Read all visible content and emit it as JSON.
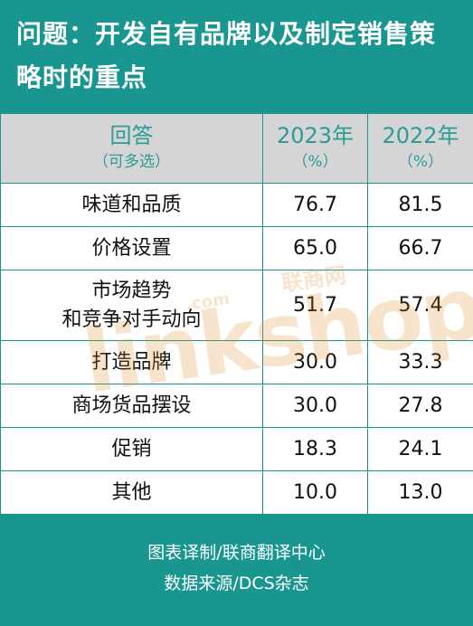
{
  "title": "问题：开发自有品牌以及制定销售策略时的重点",
  "table": {
    "headers": {
      "answer_main": "回答",
      "answer_sub": "（可多选）",
      "year1_main": "2023年",
      "year1_sub": "（%）",
      "year2_main": "2022年",
      "year2_sub": "（%）"
    },
    "rows": [
      {
        "label": "味道和品质",
        "label2": "",
        "v2023": "76.7",
        "v2022": "81.5"
      },
      {
        "label": "价格设置",
        "label2": "",
        "v2023": "65.0",
        "v2022": "66.7"
      },
      {
        "label": "市场趋势",
        "label2": "和竞争对手动向",
        "v2023": "51.7",
        "v2022": "57.4"
      },
      {
        "label": "打造品牌",
        "label2": "",
        "v2023": "30.0",
        "v2022": "33.3"
      },
      {
        "label": "商场货品摆设",
        "label2": "",
        "v2023": "30.0",
        "v2022": "27.8"
      },
      {
        "label": "促销",
        "label2": "",
        "v2023": "18.3",
        "v2022": "24.1"
      },
      {
        "label": "其他",
        "label2": "",
        "v2023": "10.0",
        "v2022": "13.0"
      }
    ]
  },
  "watermark": {
    "brand": "linkshop",
    "com": ".com",
    "cn": "联商网"
  },
  "footer": {
    "line1": "图表译制/联商翻译中心",
    "line2": "数据来源/DCS杂志"
  },
  "colors": {
    "teal": "#1a9690",
    "header_gray": "#d5d5d5",
    "header_text": "#2b9c96",
    "watermark": "#e38a1c"
  }
}
